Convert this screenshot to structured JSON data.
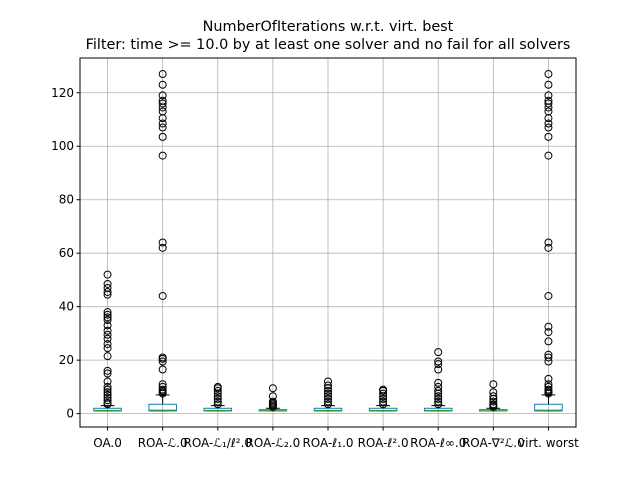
{
  "chart_data": {
    "type": "box",
    "title": "NumberOfIterations w.r.t. virt. best",
    "subtitle": "Filter: time >= 10.0 by at least one solver and no fail for all solvers",
    "xlabel": "",
    "ylabel": "",
    "ylim": [
      -5,
      133
    ],
    "yticks": [
      0,
      20,
      40,
      60,
      80,
      100,
      120
    ],
    "grid": true,
    "categories": [
      "OA.0",
      "ROA-ℒ.0",
      "ROA-ℒ₁/ℓ².0",
      "ROA-ℒ₂.0",
      "ROA-ℓ₁.0",
      "ROA-ℓ².0",
      "ROA-ℓ∞.0",
      "ROA-∇²ℒ.0",
      "virt. worst"
    ],
    "boxes": [
      {
        "q1": 1.0,
        "median": 1.2,
        "q3": 2.0,
        "whisker_low": 1.0,
        "whisker_high": 3.0,
        "outliers": [
          3.5,
          4,
          5,
          6,
          7,
          8,
          9,
          10,
          12,
          15,
          16,
          21.5,
          24.5,
          26,
          28,
          29.5,
          31,
          33,
          35,
          36,
          37,
          38,
          44.5,
          45.5,
          47,
          48.5,
          52
        ]
      },
      {
        "q1": 1.0,
        "median": 1.3,
        "q3": 3.5,
        "whisker_low": 1.0,
        "whisker_high": 7.0,
        "outliers": [
          7.5,
          8,
          8.5,
          9,
          10,
          11,
          16.5,
          19.5,
          20.5,
          21,
          44,
          62,
          64,
          96.5,
          103.5,
          107,
          108.5,
          110.5,
          113,
          114.5,
          116,
          117,
          119,
          123,
          127
        ]
      },
      {
        "q1": 1.0,
        "median": 1.2,
        "q3": 2.0,
        "whisker_low": 1.0,
        "whisker_high": 3.0,
        "outliers": [
          3.5,
          4.5,
          5.5,
          6.5,
          7.5,
          8.5,
          9.5,
          10
        ]
      },
      {
        "q1": 1.0,
        "median": 1.1,
        "q3": 1.5,
        "whisker_low": 1.0,
        "whisker_high": 2.0,
        "outliers": [
          2.5,
          3,
          3.5,
          4,
          4.5,
          6.5,
          9.5
        ]
      },
      {
        "q1": 1.0,
        "median": 1.2,
        "q3": 2.0,
        "whisker_low": 1.0,
        "whisker_high": 3.0,
        "outliers": [
          3.5,
          4.5,
          5.5,
          6.5,
          7.5,
          8.5,
          9.5,
          10.5,
          12
        ]
      },
      {
        "q1": 1.0,
        "median": 1.2,
        "q3": 2.0,
        "whisker_low": 1.0,
        "whisker_high": 3.0,
        "outliers": [
          3.5,
          4.5,
          5.5,
          6.5,
          7.5,
          8.5,
          9
        ]
      },
      {
        "q1": 1.0,
        "median": 1.2,
        "q3": 2.0,
        "whisker_low": 1.0,
        "whisker_high": 3.0,
        "outliers": [
          3.5,
          4.5,
          5.5,
          6.5,
          7.5,
          8.5,
          10,
          11.5,
          16.5,
          18.5,
          19.5,
          23
        ]
      },
      {
        "q1": 1.0,
        "median": 1.1,
        "q3": 1.5,
        "whisker_low": 1.0,
        "whisker_high": 2.0,
        "outliers": [
          2.5,
          3,
          3.5,
          4.5,
          5.5,
          6.5,
          8,
          11
        ]
      },
      {
        "q1": 1.0,
        "median": 1.3,
        "q3": 3.5,
        "whisker_low": 1.0,
        "whisker_high": 7.0,
        "outliers": [
          7.5,
          8,
          8.5,
          9,
          10,
          11,
          13,
          19.5,
          21,
          22,
          27,
          30.5,
          32.5,
          44,
          62,
          64,
          96.5,
          103.5,
          107,
          108.5,
          110.5,
          113,
          114.5,
          116,
          117,
          119,
          123,
          127
        ]
      }
    ],
    "colors": {
      "box": "#1f77b4",
      "median": "#2ca02c",
      "whisker": "#000000",
      "outlier": "#000000",
      "grid": "#b0b0b0",
      "axis": "#000000"
    }
  }
}
